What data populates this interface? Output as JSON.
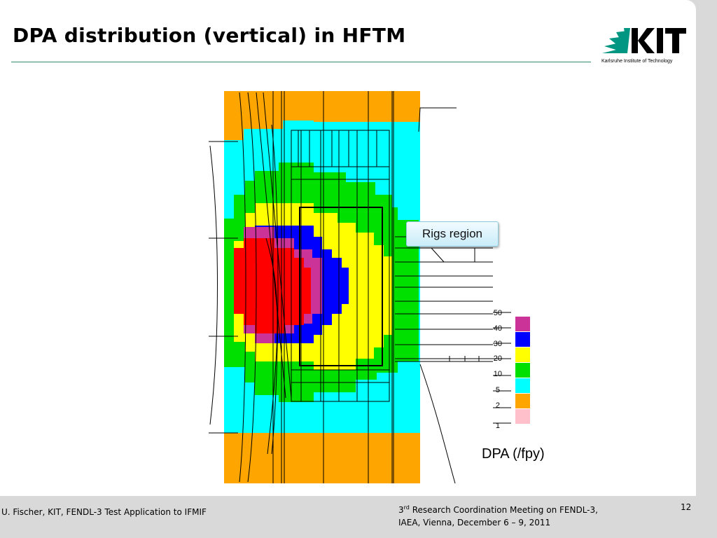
{
  "slide": {
    "title": "DPA distribution (vertical) in HFTM",
    "logo": {
      "icon": "kit-logo-icon",
      "wordmark": "KIT",
      "subtitle": "Karlsruhe Institute of Technology",
      "color": "#009682"
    },
    "callout": "Rigs region",
    "colors": {
      "title_rule": "#2e8b6e",
      "background": "#d9d9d9"
    }
  },
  "legend": {
    "unit_label": "DPA (/fpy)",
    "levels": [
      "50",
      "40",
      "30",
      "20",
      "10",
      "5",
      "2",
      "1"
    ],
    "swatches": [
      {
        "color": "#cc3399"
      },
      {
        "color": "#0000ff"
      },
      {
        "color": "#ffff00"
      },
      {
        "color": "#00e000"
      },
      {
        "color": "#00ffff"
      },
      {
        "color": "#ffa500"
      },
      {
        "color": "#ffc0cb"
      }
    ]
  },
  "footer": {
    "left": "U. Fischer, KIT, FENDL-3 Test Application to IFMIF",
    "meeting_prefix": "3",
    "meeting_sup": "rd",
    "meeting_line1_rest": " Research Coordination Meeting on FENDL-3,",
    "meeting_line2": "IAEA, Vienna, December 6 – 9, 2011",
    "page_number": "12"
  }
}
